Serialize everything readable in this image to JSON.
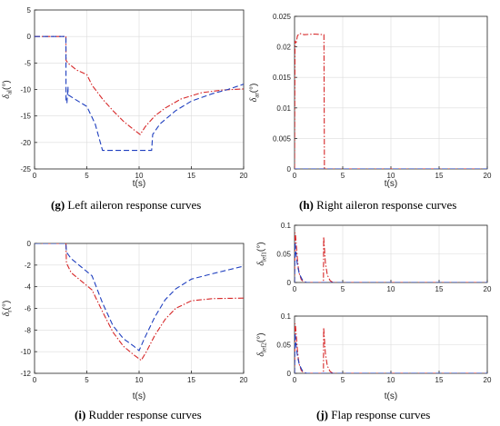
{
  "colors": {
    "series_red": "#d62728",
    "series_blue": "#1f3fbf",
    "axis": "#262626",
    "grid": "#dcdcdc"
  },
  "captions": {
    "g": {
      "letter": "(g)",
      "text": " Left aileron response curves"
    },
    "h": {
      "letter": "(h)",
      "text": " Right aileron response curves"
    },
    "i": {
      "letter": "(i)",
      "text": " Rudder response curves"
    },
    "j": {
      "letter": "(j)",
      "text": " Flap response curves"
    }
  },
  "chart_data": [
    {
      "id": "g",
      "type": "line",
      "xlabel": "t(s)",
      "ylabel": "δal(°)",
      "ylabel_main": "δ",
      "ylabel_sub": "al",
      "ylabel_unit": "(°)",
      "xlim": [
        0,
        20
      ],
      "ylim": [
        -25,
        5
      ],
      "xticks": [
        0,
        5,
        10,
        15,
        20
      ],
      "yticks": [
        -25,
        -20,
        -15,
        -10,
        -5,
        0,
        5
      ],
      "grid": true,
      "series": [
        {
          "style": "dashdot",
          "color": "red",
          "x": [
            0,
            3,
            3.01,
            3.3,
            4,
            5,
            5.5,
            6.5,
            7.5,
            8.5,
            9.5,
            10.1,
            10.6,
            11.5,
            12.5,
            14,
            16,
            18,
            20
          ],
          "y": [
            0,
            0,
            -4.5,
            -5.2,
            -6.3,
            -7.2,
            -9.2,
            -11.8,
            -14,
            -16,
            -17.6,
            -18.5,
            -17,
            -15,
            -13.5,
            -11.8,
            -10.6,
            -10.1,
            -9.9
          ]
        },
        {
          "style": "dashed",
          "color": "blue",
          "x": [
            0,
            3,
            3.01,
            3.1,
            3.2,
            3.2,
            4,
            5,
            5.8,
            6.5,
            8,
            10,
            11.2,
            11.3,
            12,
            13.5,
            15,
            17,
            18.5,
            20
          ],
          "y": [
            0,
            0,
            -12.5,
            -12.5,
            -9.5,
            -11,
            -12,
            -13.2,
            -16.5,
            -21.5,
            -21.5,
            -21.5,
            -21.5,
            -18.5,
            -16.5,
            -14,
            -12.2,
            -10.8,
            -10,
            -9
          ]
        }
      ]
    },
    {
      "id": "h",
      "type": "line",
      "xlabel": "t(s)",
      "ylabel": "δar(°)",
      "ylabel_main": "δ",
      "ylabel_sub": "ar",
      "ylabel_unit": "(°)",
      "xlim": [
        0,
        20
      ],
      "ylim": [
        0,
        0.025
      ],
      "xticks": [
        0,
        5,
        10,
        15,
        20
      ],
      "yticks": [
        0,
        0.005,
        0.01,
        0.015,
        0.02,
        0.025
      ],
      "ytick_labels": [
        "0",
        "0.005",
        "0.01",
        "0.015",
        "0.02",
        "0.025"
      ],
      "grid": true,
      "series": [
        {
          "style": "dashdot",
          "color": "red",
          "x": [
            0,
            0.05,
            0.15,
            0.3,
            0.5,
            1,
            2,
            3,
            3.05,
            3.1,
            20
          ],
          "y": [
            0,
            0.021,
            0.0205,
            0.0218,
            0.0222,
            0.022,
            0.0221,
            0.022,
            0.022,
            0,
            0
          ]
        },
        {
          "style": "dashed",
          "color": "blue",
          "x": [
            0,
            3,
            20
          ],
          "y": [
            0,
            0,
            0
          ]
        }
      ]
    },
    {
      "id": "i",
      "type": "line",
      "xlabel": "t(s)",
      "ylabel": "δr(°)",
      "ylabel_main": "δ",
      "ylabel_sub": "r",
      "ylabel_unit": "(°)",
      "xlim": [
        0,
        20
      ],
      "ylim": [
        -12,
        0
      ],
      "xticks": [
        0,
        5,
        10,
        15,
        20
      ],
      "yticks": [
        -12,
        -10,
        -8,
        -6,
        -4,
        -2,
        0
      ],
      "grid": true,
      "series": [
        {
          "style": "dashdot",
          "color": "red",
          "x": [
            0,
            3,
            3.05,
            3.5,
            4.5,
            5.5,
            6.5,
            7.5,
            8.5,
            9.5,
            10.2,
            10.7,
            11.5,
            12.5,
            13.5,
            15,
            17,
            20
          ],
          "y": [
            0,
            0,
            -1.8,
            -2.7,
            -3.5,
            -4.3,
            -6.3,
            -8.2,
            -9.5,
            -10.3,
            -10.8,
            -10,
            -8.5,
            -7,
            -6,
            -5.3,
            -5.1,
            -5.05
          ]
        },
        {
          "style": "dashed",
          "color": "blue",
          "x": [
            0,
            3,
            3.05,
            3.5,
            4.5,
            5.5,
            6.5,
            7.5,
            8.5,
            9.5,
            10,
            10.5,
            11.5,
            12.5,
            13.5,
            15,
            17,
            20
          ],
          "y": [
            0,
            0,
            -0.8,
            -1.4,
            -2.2,
            -3,
            -5.5,
            -7.6,
            -8.8,
            -9.5,
            -9.9,
            -8.8,
            -6.8,
            -5.2,
            -4.2,
            -3.3,
            -2.8,
            -2.1
          ]
        }
      ]
    },
    {
      "id": "j1",
      "type": "line",
      "xlabel": "",
      "ylabel": "δlef1(°)",
      "ylabel_main": "δ",
      "ylabel_sub": "lef1",
      "ylabel_unit": "(°)",
      "xlim": [
        0,
        20
      ],
      "ylim": [
        0,
        0.1
      ],
      "xticks": [
        0,
        5,
        10,
        15,
        20
      ],
      "yticks": [
        0,
        0.05,
        0.1
      ],
      "ytick_labels": [
        "0",
        "0.05",
        "0.1"
      ],
      "grid": true,
      "series": [
        {
          "style": "dashdot",
          "color": "red",
          "x": [
            0,
            0.05,
            0.1,
            0.2,
            0.3,
            0.4,
            0.5,
            0.7,
            1.0,
            3.0,
            3.02,
            3.1,
            3.2,
            3.4,
            3.7,
            4,
            20
          ],
          "y": [
            0,
            0.087,
            0.083,
            0.062,
            0.04,
            0.025,
            0.015,
            0.005,
            0,
            0,
            0.08,
            0.06,
            0.035,
            0.013,
            0.003,
            0,
            0
          ]
        },
        {
          "style": "dashed",
          "color": "blue",
          "x": [
            0,
            0.05,
            0.15,
            0.3,
            0.5,
            0.8,
            1.2,
            20
          ],
          "y": [
            0,
            0.07,
            0.05,
            0.03,
            0.015,
            0.005,
            0,
            0
          ]
        }
      ]
    },
    {
      "id": "j2",
      "type": "line",
      "xlabel": "t(s)",
      "ylabel": "δlef2(°)",
      "ylabel_main": "δ",
      "ylabel_sub": "lef2",
      "ylabel_unit": "(°)",
      "xlim": [
        0,
        20
      ],
      "ylim": [
        0,
        0.1
      ],
      "xticks": [
        0,
        5,
        10,
        15,
        20
      ],
      "yticks": [
        0,
        0.05,
        0.1
      ],
      "ytick_labels": [
        "0",
        "0.05",
        "0.1"
      ],
      "grid": true,
      "series": [
        {
          "style": "dashdot",
          "color": "red",
          "x": [
            0,
            0.05,
            0.1,
            0.2,
            0.3,
            0.4,
            0.5,
            0.7,
            1.0,
            3.0,
            3.02,
            3.1,
            3.2,
            3.4,
            3.7,
            4,
            20
          ],
          "y": [
            0,
            0.087,
            0.083,
            0.062,
            0.04,
            0.025,
            0.015,
            0.005,
            0,
            0,
            0.08,
            0.06,
            0.035,
            0.013,
            0.003,
            0,
            0
          ]
        },
        {
          "style": "dashed",
          "color": "blue",
          "x": [
            0,
            0.05,
            0.15,
            0.3,
            0.5,
            0.8,
            1.2,
            20
          ],
          "y": [
            0,
            0.07,
            0.05,
            0.03,
            0.015,
            0.005,
            0,
            0
          ]
        }
      ]
    }
  ]
}
